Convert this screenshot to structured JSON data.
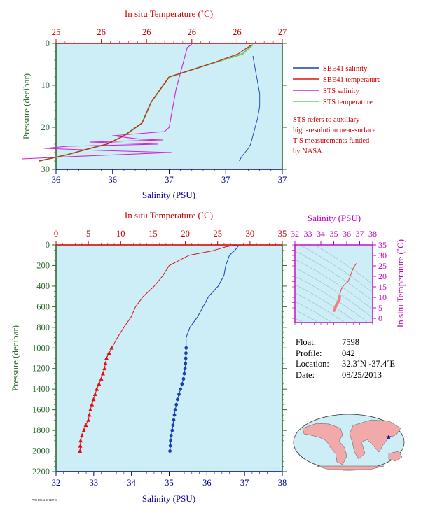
{
  "colors": {
    "panel_bg": "#cdeef7",
    "axis_red": "#cc0000",
    "axis_blue": "#000099",
    "axis_green": "#2e6b2e",
    "sbe_salinity": "#1a3fb0",
    "sbe_temperature": "#e01010",
    "sts_salinity": "#d020d0",
    "sts_temperature": "#66cc66",
    "ts_axis": "#c000c0"
  },
  "chart_data": [
    {
      "id": "top",
      "type": "line",
      "title": "",
      "top_axis": {
        "label": "In situ Temperature (˚C)",
        "range": [
          25,
          27
        ],
        "ticks": [
          "25",
          "26",
          "26",
          "26",
          "26",
          "27"
        ]
      },
      "bottom_axis": {
        "label": "Salinity (PSU)",
        "range": [
          36.35,
          37.35
        ],
        "ticks": [
          "36",
          "36",
          "37",
          "37",
          "37"
        ]
      },
      "ylabel": "Pressure (decibar)",
      "ylim": [
        0,
        30
      ],
      "yticks": [
        "0",
        "10",
        "20",
        "30"
      ],
      "legend": {
        "position": "right",
        "items": [
          {
            "label": "SBE41 salinity",
            "color": "#1a3fb0"
          },
          {
            "label": "SBE41 temperature",
            "color": "#e01010"
          },
          {
            "label": "STS salinity",
            "color": "#d020d0"
          },
          {
            "label": "STS temperature",
            "color": "#66cc66"
          }
        ]
      },
      "note": [
        "STS refers to auxiliary",
        "high-resolution near-surface",
        "T-S measurements funded",
        "by NASA."
      ],
      "series": [
        {
          "name": "SBE41 salinity",
          "axis": "bottom",
          "x": [
            37.22,
            37.23,
            37.24,
            37.25,
            37.25,
            37.24,
            37.23,
            37.22,
            37.21,
            37.2,
            37.17,
            37.16
          ],
          "y": [
            3,
            6,
            9,
            12,
            15,
            18,
            20,
            22,
            24,
            25,
            27,
            28
          ]
        },
        {
          "name": "SBE41 temperature",
          "axis": "top",
          "x": [
            26.72,
            26.61,
            26.35,
            26.0,
            25.92,
            25.84,
            25.76,
            25.6,
            25.45,
            25.3,
            25.1,
            24.85
          ],
          "y": [
            0.5,
            2.5,
            5,
            8,
            11,
            14,
            19,
            22,
            24,
            25,
            26.5,
            28
          ]
        },
        {
          "name": "STS salinity",
          "axis": "bottom",
          "x": [
            36.95,
            36.93,
            36.92,
            36.91,
            36.9,
            36.89,
            36.88,
            36.87,
            36.86,
            36.85,
            36.83,
            36.6,
            36.72,
            36.82,
            36.5,
            36.8,
            36.4,
            36.3,
            36.55,
            36.86,
            36.4,
            36.2
          ],
          "y": [
            0.2,
            1,
            3,
            5,
            7,
            9,
            11,
            14,
            17,
            20,
            21,
            22,
            22.8,
            23,
            23.5,
            24,
            24.5,
            25,
            25.5,
            26,
            27,
            27.5
          ]
        },
        {
          "name": "STS temperature",
          "axis": "top",
          "x": [
            26.74,
            26.65,
            26.35,
            26.0,
            25.92,
            25.84,
            25.76,
            25.6,
            25.45,
            25.3,
            25.1,
            24.85
          ],
          "y": [
            0.3,
            2.5,
            5,
            8,
            11,
            14,
            19,
            22,
            24,
            25,
            26.5,
            28
          ]
        }
      ]
    },
    {
      "id": "bottom",
      "type": "line",
      "title": "",
      "top_axis": {
        "label": "In situ Temperature (˚C)",
        "range": [
          0,
          35
        ],
        "ticks": [
          "0",
          "5",
          "10",
          "15",
          "20",
          "25",
          "30",
          "35"
        ]
      },
      "bottom_axis": {
        "label": "Salinity (PSU)",
        "range": [
          32,
          38
        ],
        "ticks": [
          "32",
          "33",
          "34",
          "35",
          "36",
          "37",
          "38"
        ]
      },
      "ylabel": "Pressure (decibar)",
      "ylim": [
        0,
        2200
      ],
      "yticks": [
        "0",
        "200",
        "400",
        "600",
        "800",
        "1000",
        "1200",
        "1400",
        "1600",
        "1800",
        "2000",
        "2200"
      ],
      "series": [
        {
          "name": "temperature",
          "axis": "top",
          "x": [
            28.2,
            27.0,
            26.2,
            25.4,
            24.0,
            20.6,
            17.5,
            16.5,
            15.2,
            13.5,
            12.3,
            11.6,
            10.5,
            9.5,
            8.6,
            7.8,
            7.5,
            7.0,
            6.3,
            5.8,
            5.3,
            5.0,
            4.6,
            4.3,
            4.0,
            3.8,
            3.7
          ],
          "y": [
            2,
            10,
            20,
            35,
            60,
            100,
            200,
            300,
            400,
            500,
            600,
            700,
            800,
            900,
            1000,
            1100,
            1200,
            1300,
            1400,
            1500,
            1600,
            1700,
            1750,
            1800,
            1850,
            1900,
            2000
          ]
        },
        {
          "name": "salinity",
          "axis": "bottom",
          "x": [
            36.85,
            36.75,
            36.6,
            36.5,
            36.45,
            36.3,
            36.05,
            35.9,
            35.75,
            35.55,
            35.45,
            35.45,
            35.44,
            35.42,
            35.38,
            35.3,
            35.22,
            35.16,
            35.12,
            35.1,
            35.08,
            35.05,
            35.04,
            35.02
          ],
          "y": [
            2,
            50,
            100,
            200,
            300,
            400,
            500,
            600,
            700,
            800,
            900,
            1000,
            1100,
            1200,
            1300,
            1400,
            1500,
            1600,
            1700,
            1750,
            1800,
            1850,
            1900,
            2000
          ]
        }
      ],
      "marker_depths": [
        1000,
        1050,
        1100,
        1150,
        1200,
        1250,
        1300,
        1350,
        1400,
        1450,
        1500,
        1550,
        1600,
        1650,
        1700,
        1750,
        1800,
        1850,
        1900,
        1950,
        2000
      ]
    },
    {
      "id": "ts",
      "type": "line",
      "title": "",
      "top_axis": {
        "label": "Salinity (PSU)",
        "range": [
          32,
          38
        ],
        "ticks": [
          "32",
          "33",
          "34",
          "35",
          "36",
          "37",
          "38"
        ]
      },
      "right_axis": {
        "label": "In situ Temperature (˚C)",
        "range": [
          -2,
          35
        ],
        "ticks": [
          "0",
          "5",
          "10",
          "15",
          "20",
          "25",
          "30",
          "35"
        ]
      },
      "series": [
        {
          "name": "T-S profile",
          "s": [
            35.02,
            35.08,
            35.12,
            35.2,
            35.3,
            35.42,
            35.45,
            35.5,
            35.55,
            35.7,
            35.9,
            36.1,
            36.3,
            36.5,
            36.75
          ],
          "t": [
            3.7,
            4.6,
            5.3,
            6.3,
            7.5,
            8.6,
            10.5,
            12.3,
            13.5,
            15.2,
            16.5,
            17.5,
            20.6,
            24,
            26.2
          ]
        }
      ]
    }
  ],
  "float_info": {
    "float": {
      "key": "Float:",
      "value": "7598"
    },
    "profile": {
      "key": "Profile:",
      "value": "042"
    },
    "location": {
      "key": "Location:",
      "value": "32.3˚N  -37.4˚E"
    },
    "date": {
      "key": "Date:",
      "value": "08/25/2013"
    }
  }
}
